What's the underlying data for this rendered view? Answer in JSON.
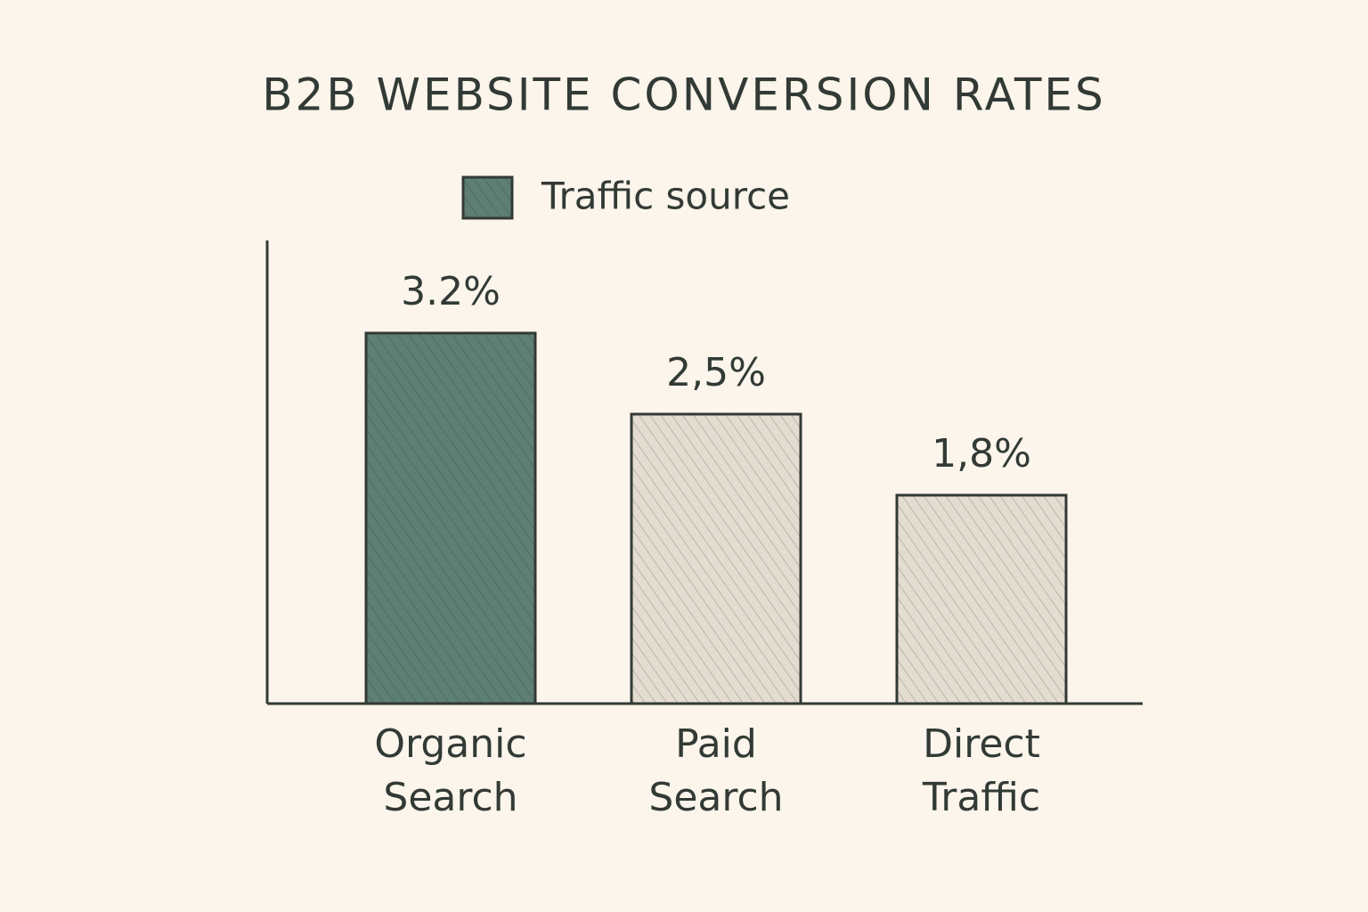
{
  "chart_data": {
    "type": "bar",
    "title": "B2B WEBSITE CONVERSION RATES",
    "categories": [
      "Organic Search",
      "Paid Search",
      "Direct Traffic"
    ],
    "series": [
      {
        "name": "Traffic source",
        "color": "#5e7f73",
        "values": [
          3.2,
          2.5,
          1.8
        ],
        "value_labels": [
          "3.2%",
          "2,5%",
          "1,8%"
        ]
      }
    ],
    "colors": [
      "#5e7f73",
      "#e4dcd0",
      "#e4dcd0"
    ],
    "ylim": [
      0,
      4
    ]
  }
}
